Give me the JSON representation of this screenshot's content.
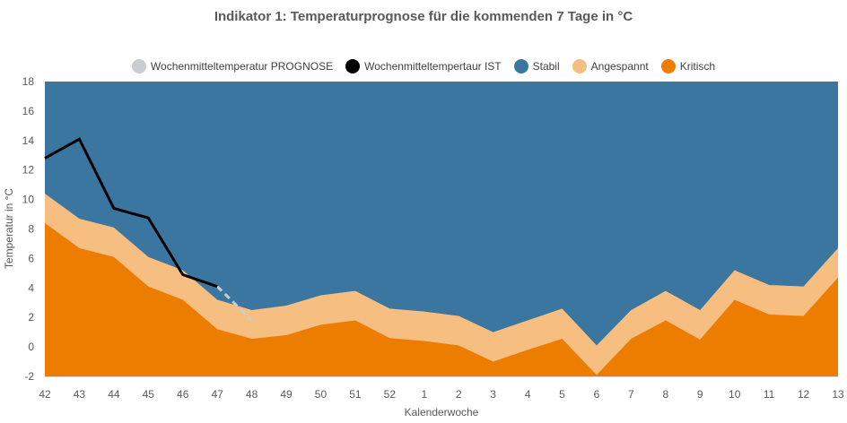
{
  "chart_data": {
    "type": "area",
    "title": "Indikator 1: Temperaturprognose für die kommenden 7 Tage in °C",
    "xlabel": "Kalenderwoche",
    "ylabel": "Temperatur in °C",
    "ylim": [
      -2,
      18
    ],
    "yticks": [
      -2,
      0,
      2,
      4,
      6,
      8,
      10,
      12,
      14,
      16,
      18
    ],
    "categories": [
      "42",
      "43",
      "44",
      "45",
      "46",
      "47",
      "48",
      "49",
      "50",
      "51",
      "52",
      "1",
      "2",
      "3",
      "4",
      "5",
      "6",
      "7",
      "8",
      "9",
      "10",
      "11",
      "12",
      "13"
    ],
    "legend_position": "top",
    "grid": false,
    "bands": [
      {
        "name": "Kritisch",
        "color": "#ED7D00",
        "upper": [
          8.4,
          6.7,
          6.1,
          4.1,
          3.2,
          1.2,
          0.55,
          0.8,
          1.5,
          1.8,
          0.6,
          0.4,
          0.1,
          -1.0,
          -0.2,
          0.55,
          -1.9,
          0.55,
          1.8,
          0.5,
          3.2,
          2.2,
          2.1,
          4.7
        ]
      },
      {
        "name": "Angespannt",
        "color": "#F6BE80",
        "upper": [
          10.4,
          8.7,
          8.1,
          6.1,
          5.2,
          3.2,
          2.5,
          2.8,
          3.5,
          3.8,
          2.6,
          2.4,
          2.1,
          1.0,
          1.8,
          2.6,
          0.1,
          2.5,
          3.8,
          2.5,
          5.2,
          4.2,
          4.1,
          6.7
        ]
      },
      {
        "name": "Stabil",
        "color": "#3B76A0",
        "upper": [
          18,
          18,
          18,
          18,
          18,
          18,
          18,
          18,
          18,
          18,
          18,
          18,
          18,
          18,
          18,
          18,
          18,
          18,
          18,
          18,
          18,
          18,
          18,
          18
        ]
      }
    ],
    "series": [
      {
        "name": "Wochenmitteltemperatur PROGNOSE",
        "color": "#C8CDD2",
        "style": "dashed",
        "x": [
          "47",
          "48"
        ],
        "values": [
          4.1,
          1.8
        ]
      },
      {
        "name": "Wochenmitteltempertaur IST",
        "color": "#000000",
        "style": "solid",
        "x": [
          "42",
          "43",
          "44",
          "45",
          "46",
          "47"
        ],
        "values": [
          12.8,
          14.1,
          9.4,
          8.75,
          4.9,
          4.1
        ]
      }
    ],
    "legend": [
      {
        "label": "Wochenmitteltemperatur PROGNOSE",
        "color": "#C8CDD2"
      },
      {
        "label": "Wochenmitteltempertaur IST",
        "color": "#000000"
      },
      {
        "label": "Stabil",
        "color": "#3B76A0"
      },
      {
        "label": "Angespannt",
        "color": "#F6BE80"
      },
      {
        "label": "Kritisch",
        "color": "#ED7D00"
      }
    ]
  }
}
